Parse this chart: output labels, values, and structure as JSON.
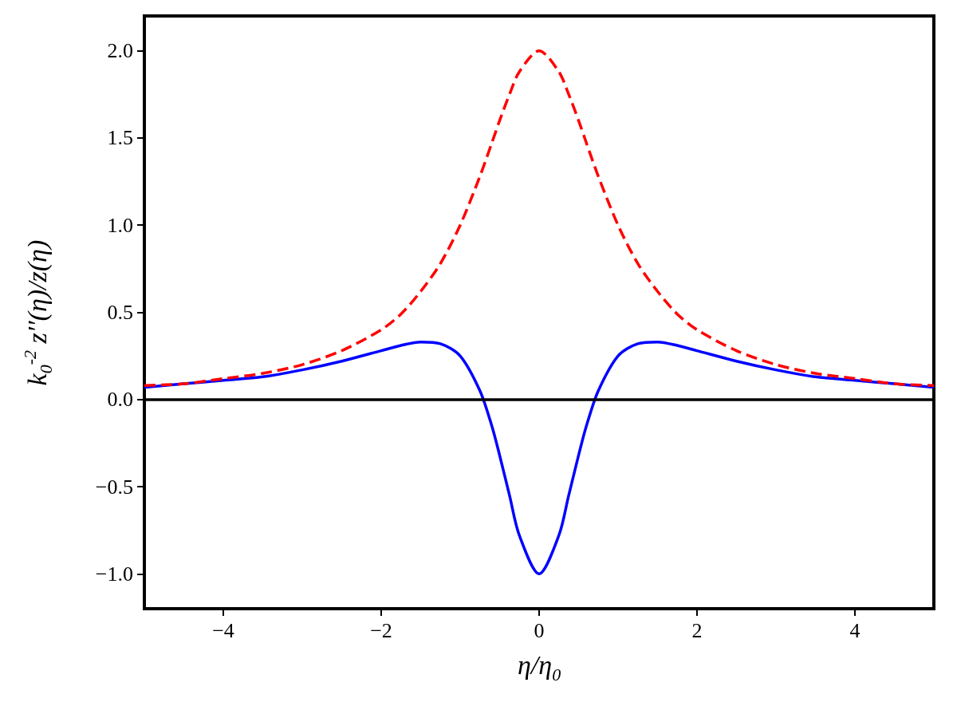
{
  "chart_data": {
    "type": "line",
    "xlabel": "η/η$_{0}$",
    "ylabel": "k$_{0}$$^{-2}$ z′′(η)/z(η)",
    "x": [
      -5,
      -4.5,
      -4,
      -3.5,
      -3,
      -2.5,
      -2,
      -1.75,
      -1.5,
      -1.25,
      -1,
      -0.75,
      -0.6,
      -0.5,
      -0.375,
      -0.25,
      0,
      0.25,
      0.375,
      0.5,
      0.6,
      0.75,
      1,
      1.25,
      1.5,
      1.75,
      2,
      2.5,
      3,
      3.5,
      4,
      4.5,
      5
    ],
    "series": [
      {
        "color": "#ff0000",
        "line_style": "dashed",
        "values": [
          0.08,
          0.09,
          0.12,
          0.15,
          0.2,
          0.28,
          0.4,
          0.49,
          0.62,
          0.78,
          1.0,
          1.28,
          1.47,
          1.6,
          1.75,
          1.88,
          2.0,
          1.88,
          1.75,
          1.6,
          1.47,
          1.28,
          1.0,
          0.78,
          0.62,
          0.49,
          0.4,
          0.28,
          0.2,
          0.15,
          0.12,
          0.09,
          0.08
        ]
      },
      {
        "color": "#0000ff",
        "line_style": "solid",
        "values": [
          0.07,
          0.09,
          0.11,
          0.13,
          0.17,
          0.22,
          0.28,
          0.31,
          0.33,
          0.32,
          0.25,
          0.05,
          -0.15,
          -0.32,
          -0.55,
          -0.78,
          -1.0,
          -0.78,
          -0.55,
          -0.32,
          -0.15,
          0.05,
          0.25,
          0.32,
          0.33,
          0.31,
          0.28,
          0.22,
          0.17,
          0.13,
          0.11,
          0.09,
          0.07
        ]
      }
    ],
    "ref_lines": [
      {
        "axis": "y",
        "value": 0,
        "color": "#000000"
      }
    ],
    "xlim": [
      -5,
      5
    ],
    "xticks": [
      {
        "value": -4,
        "label": "−4"
      },
      {
        "value": -2,
        "label": "−2"
      },
      0,
      2,
      4
    ],
    "ylim": [
      -1.2,
      2.2
    ],
    "yticks": [
      {
        "value": -1,
        "label": "−1.0"
      },
      {
        "value": -0.5,
        "label": "−0.5"
      },
      {
        "value": 0,
        "label": "0.0"
      },
      {
        "value": 0.5,
        "label": "0.5"
      },
      {
        "value": 1,
        "label": "1.0"
      },
      {
        "value": 1.5,
        "label": "1.5"
      },
      {
        "value": 2,
        "label": "2.0"
      }
    ],
    "grid": false,
    "marker": "none"
  }
}
